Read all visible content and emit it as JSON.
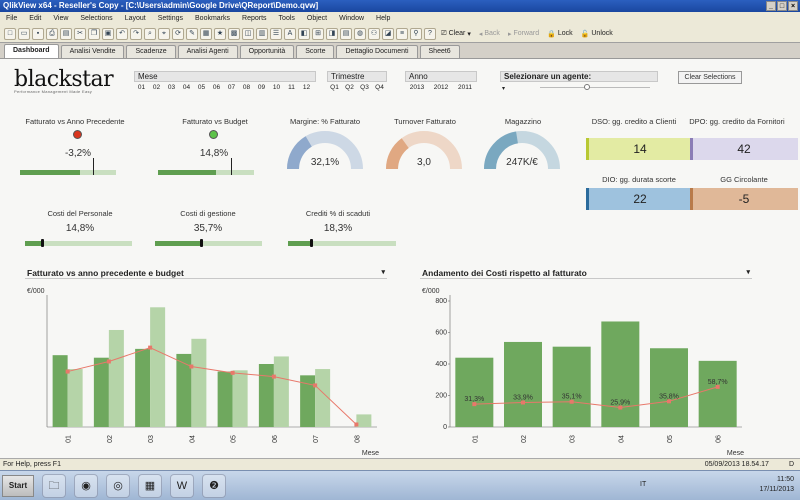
{
  "window": {
    "title": "QlikView x64 - Reseller's Copy - [C:\\Users\\admin\\Google Drive\\QReport\\Demo.qvw]",
    "controls": [
      "_",
      "□",
      "×"
    ]
  },
  "menu": [
    "File",
    "Edit",
    "View",
    "Selections",
    "Layout",
    "Settings",
    "Bookmarks",
    "Reports",
    "Tools",
    "Object",
    "Window",
    "Help"
  ],
  "toolbar": {
    "clear": "Clear",
    "back": "Back",
    "forward": "Forward",
    "lock": "Lock",
    "unlock": "Unlock"
  },
  "tabs": [
    "Dashboard",
    "Analisi Vendite",
    "Scadenze",
    "Analisi Agenti",
    "Opportunità",
    "Scorte",
    "Dettaglio Documenti",
    "Sheet6"
  ],
  "active_tab": "Dashboard",
  "logo": {
    "name": "blackstar",
    "tagline": "Performance Management Made Easy"
  },
  "filters": {
    "mese": {
      "label": "Mese",
      "values": [
        "01",
        "02",
        "03",
        "04",
        "05",
        "06",
        "07",
        "08",
        "09",
        "10",
        "11",
        "12"
      ]
    },
    "trimestre": {
      "label": "Trimestre",
      "values": [
        "Q1",
        "Q2",
        "Q3",
        "Q4"
      ]
    },
    "anno": {
      "label": "Anno",
      "values": [
        "2013",
        "2012",
        "2011"
      ]
    },
    "agente": {
      "label": "Selezionare un agente:"
    },
    "clear_label": "Clear Selections"
  },
  "kpis": {
    "fatt_prec": {
      "label": "Fatturato vs Anno Precedente",
      "value": "-3,2%",
      "status_color": "#d9361f",
      "bar_fraction": 0.62,
      "target_fraction": 0.76
    },
    "fatt_budget": {
      "label": "Fatturato vs Budget",
      "value": "14,8%",
      "status_color": "#5ec34a",
      "bar_fraction": 0.6,
      "target_fraction": 0.76
    },
    "margine": {
      "label": "Margine: % Fatturato",
      "value": "32,1%",
      "fraction": 0.33,
      "color": "#8fa9cc"
    },
    "turnover": {
      "label": "Turnover Fatturato",
      "value": "3,0",
      "fraction": 0.3,
      "color": "#e0a882"
    },
    "magazzino": {
      "label": "Magazzino",
      "value": "247K/€",
      "fraction": 0.45,
      "color": "#7aa8c0"
    },
    "costi_personale": {
      "label": "Costi del Personale",
      "value": "14,8%",
      "bar_fraction": 0.15
    },
    "costi_gestione": {
      "label": "Costi di gestione",
      "value": "35,7%",
      "bar_fraction": 0.42
    },
    "crediti_scaduti": {
      "label": "Crediti % di scaduti",
      "value": "18,3%",
      "bar_fraction": 0.2
    },
    "dso": {
      "label": "DSO: gg. credito a Clienti",
      "value": "14",
      "bg": "#e3eba3",
      "accent": "#b8c832"
    },
    "dpo": {
      "label": "DPO: gg. credito da Fornitori",
      "value": "42",
      "bg": "#dcd8ec",
      "accent": "#8b7db6"
    },
    "dio": {
      "label": "DIO: gg. durata scorte",
      "value": "22",
      "bg": "#9ec2de",
      "accent": "#2b6b9c"
    },
    "gg_circolante": {
      "label": "GG Circolante",
      "value": "-5",
      "bg": "#e0b898",
      "accent": "#b87a4a"
    }
  },
  "charts": {
    "left": {
      "title": "Fatturato vs anno precedente e budget",
      "ylabel": "€/000"
    },
    "right": {
      "title": "Andamento dei Costi rispetto al fatturato",
      "ylabel": "€/000"
    }
  },
  "chart_data": [
    {
      "type": "bar",
      "title": "Fatturato vs anno precedente e budget",
      "ylabel": "€/000",
      "xlabel": "Mese",
      "categories": [
        "01",
        "02",
        "03",
        "04",
        "05",
        "06",
        "07",
        "08"
      ],
      "series": [
        {
          "values": [
            570,
            550,
            620,
            580,
            440,
            500,
            410,
            0
          ],
          "color": "#6fa85e",
          "kind": "bar"
        },
        {
          "values": [
            460,
            770,
            950,
            700,
            450,
            560,
            460,
            100
          ],
          "color": "#b5d4a8",
          "kind": "bar"
        },
        {
          "values": [
            440,
            520,
            630,
            480,
            430,
            400,
            330,
            20
          ],
          "color": "#e8786a",
          "kind": "line"
        }
      ]
    },
    {
      "type": "bar",
      "title": "Andamento dei Costi rispetto al fatturato",
      "ylabel": "€/000",
      "xlabel": "Mese",
      "ylim": [
        0,
        800
      ],
      "yticks": [
        0,
        200,
        400,
        600,
        800
      ],
      "categories": [
        "01",
        "02",
        "03",
        "04",
        "05",
        "06"
      ],
      "series": [
        {
          "values": [
            440,
            540,
            510,
            670,
            500,
            420
          ],
          "color": "#6fa85e",
          "kind": "bar"
        },
        {
          "values": [
            31.3,
            33.9,
            35.1,
            25.9,
            35.8,
            58.7
          ],
          "labels": [
            "31,3%",
            "33,9%",
            "35,1%",
            "25,9%",
            "35,8%",
            "58,7%"
          ],
          "color": "#e8786a",
          "kind": "line"
        }
      ]
    }
  ],
  "status": {
    "help": "For Help, press F1",
    "datetime": "05/09/2013 18.54.17",
    "mode": "D"
  },
  "taskbar": {
    "start": "Start",
    "ime": "IT",
    "time": "11:50",
    "date": "17/11/2013"
  }
}
